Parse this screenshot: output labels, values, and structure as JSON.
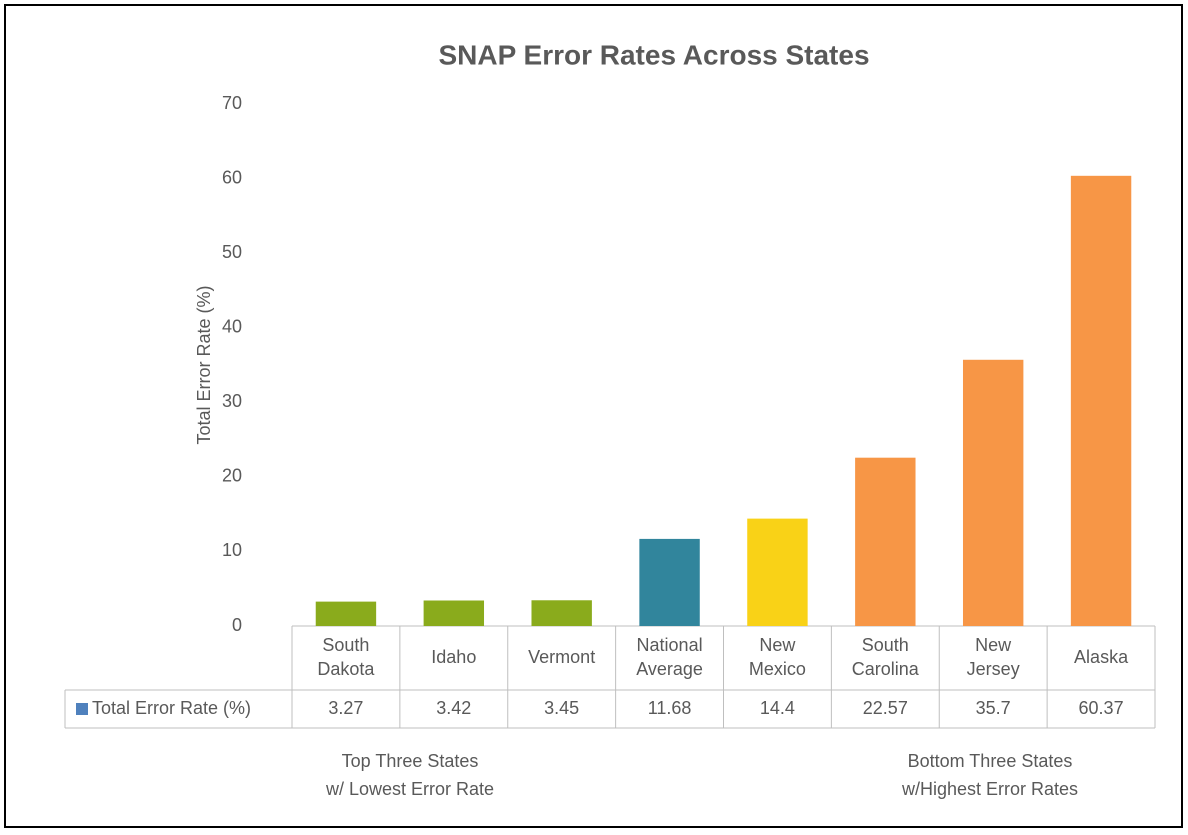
{
  "chart_data": {
    "type": "bar",
    "title": "SNAP Error Rates Across States",
    "y_label": "Total Error Rate (%)",
    "categories": [
      "South Dakota",
      "Idaho",
      "Vermont",
      "National Average",
      "New Mexico",
      "South Carolina",
      "New Jersey",
      "Alaska"
    ],
    "series": [
      {
        "name": "Total Error Rate (%)",
        "color": "#4f81bd",
        "values": [
          3.27,
          3.42,
          3.45,
          11.68,
          14.4,
          22.57,
          35.7,
          60.37
        ],
        "colors": [
          "#8aab1c",
          "#8aab1c",
          "#8aab1c",
          "#31859c",
          "#f9d217",
          "#f79646",
          "#f79646",
          "#f79646"
        ]
      }
    ],
    "ylim": [
      0,
      70
    ],
    "yticks": [
      0,
      10,
      20,
      30,
      40,
      50,
      60,
      70
    ],
    "grid": false,
    "annotations": [
      {
        "lines": [
          "Top Three States",
          "w/ Lowest Error Rate"
        ]
      },
      {
        "lines": [
          "Bottom Three States",
          "w/Highest Error Rates"
        ]
      }
    ]
  }
}
